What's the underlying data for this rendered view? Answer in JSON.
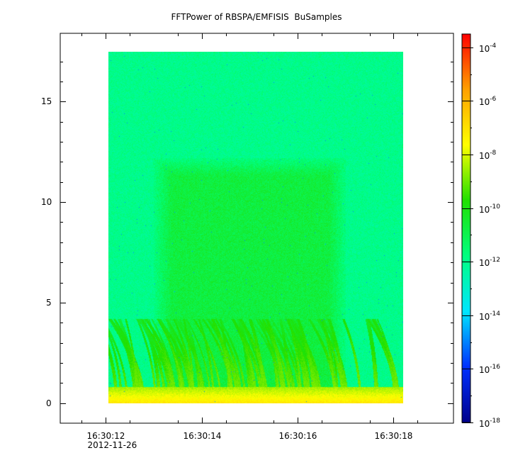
{
  "chart_data": {
    "type": "heatmap",
    "title": "FFTPower of RBSPA/EMFISIS  BuSamples",
    "xlabel": "",
    "ylabel": "",
    "x_ticks": [
      {
        "label": "16:30:12",
        "sublabel": "2012-11-26",
        "value": 12
      },
      {
        "label": "16:30:14",
        "value": 14
      },
      {
        "label": "16:30:16",
        "value": 16
      },
      {
        "label": "16:30:18",
        "value": 18
      }
    ],
    "x_range_seconds": [
      11.05,
      19.25
    ],
    "data_time_range_seconds": [
      12.05,
      18.2
    ],
    "y_ticks": [
      0,
      5,
      10,
      15
    ],
    "ylim": [
      -1,
      18.4
    ],
    "data_freq_range": [
      0,
      17.5
    ],
    "colorbar": {
      "scale": "log",
      "range_exponents": [
        -18,
        -3.5
      ],
      "tick_base": "10",
      "tick_exponents": [
        -18,
        -16,
        -14,
        -12,
        -10,
        -8,
        -6,
        -4
      ],
      "colors": [
        "#00008b",
        "#0030ff",
        "#00e6ff",
        "#00ff80",
        "#20e000",
        "#ffff00",
        "#ffa000",
        "#ff0000"
      ]
    },
    "background_level_exponent": -12,
    "inner_block": {
      "time_range_seconds": [
        13.0,
        17.0
      ],
      "freq_range": [
        0,
        12.2
      ],
      "level_exponent": -11
    },
    "low_freq_band": {
      "freq_range": [
        0,
        0.8
      ],
      "level_exponent": -8
    },
    "chorus_streaks": {
      "freq_range": [
        0,
        4.2
      ],
      "level_exponent": -9
    }
  }
}
